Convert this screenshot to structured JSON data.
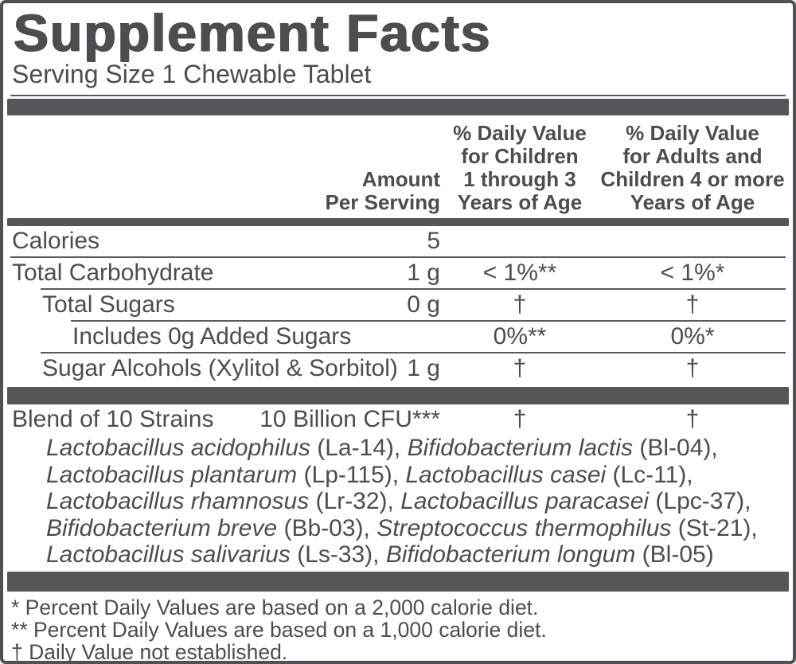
{
  "title": "Supplement Facts",
  "serving_size": "Serving Size 1 Chewable Tablet",
  "columns": {
    "amount": "Amount\nPer Serving",
    "child_dv": "% Daily Value\nfor Children\n1 through 3\nYears of Age",
    "adult_dv": "% Daily Value\nfor Adults and\nChildren 4 or more\nYears of Age"
  },
  "rows": [
    {
      "name": "Calories",
      "amount": "5",
      "child_dv": "",
      "adult_dv": ""
    },
    {
      "name": "Total Carbohydrate",
      "amount": "1 g",
      "child_dv": "< 1%**",
      "adult_dv": "< 1%*"
    },
    {
      "name": "Total Sugars",
      "amount": "0 g",
      "child_dv": "†",
      "adult_dv": "†"
    },
    {
      "name": "Includes 0g Added Sugars",
      "amount": "",
      "child_dv": "0%**",
      "adult_dv": "0%*"
    },
    {
      "name": "Sugar Alcohols (Xylitol & Sorbitol)",
      "amount": "1 g",
      "child_dv": "†",
      "adult_dv": "†"
    },
    {
      "name": "Blend of 10 Strains",
      "amount": "10 Billion CFU***",
      "child_dv": "†",
      "adult_dv": "†"
    }
  ],
  "strains": [
    [
      "Lactobacillus acidophilus",
      " (La-14), ",
      "Bifidobacterium lactis",
      " (Bl-04),"
    ],
    [
      "Lactobacillus plantarum",
      " (Lp-115), ",
      "Lactobacillus casei",
      " (Lc-11),"
    ],
    [
      "Lactobacillus rhamnosus",
      " (Lr-32), ",
      "Lactobacillus paracasei",
      " (Lpc-37),"
    ],
    [
      "Bifidobacterium breve",
      " (Bb-03), ",
      "Streptococcus thermophilus",
      " (St-21),"
    ],
    [
      "Lactobacillus salivarius",
      " (Ls-33), ",
      "Bifidobacterium longum",
      " (Bl-05)"
    ]
  ],
  "footnotes": [
    "* Percent Daily Values are based on a 2,000 calorie diet.",
    "** Percent Daily Values are based on a 1,000 calorie diet.",
    "† Daily Value not established."
  ],
  "colors": {
    "text": "#4d4d51",
    "bar": "#56565a",
    "rule": "#5a5a5e",
    "border": "#515155",
    "bg": "#ffffff"
  }
}
